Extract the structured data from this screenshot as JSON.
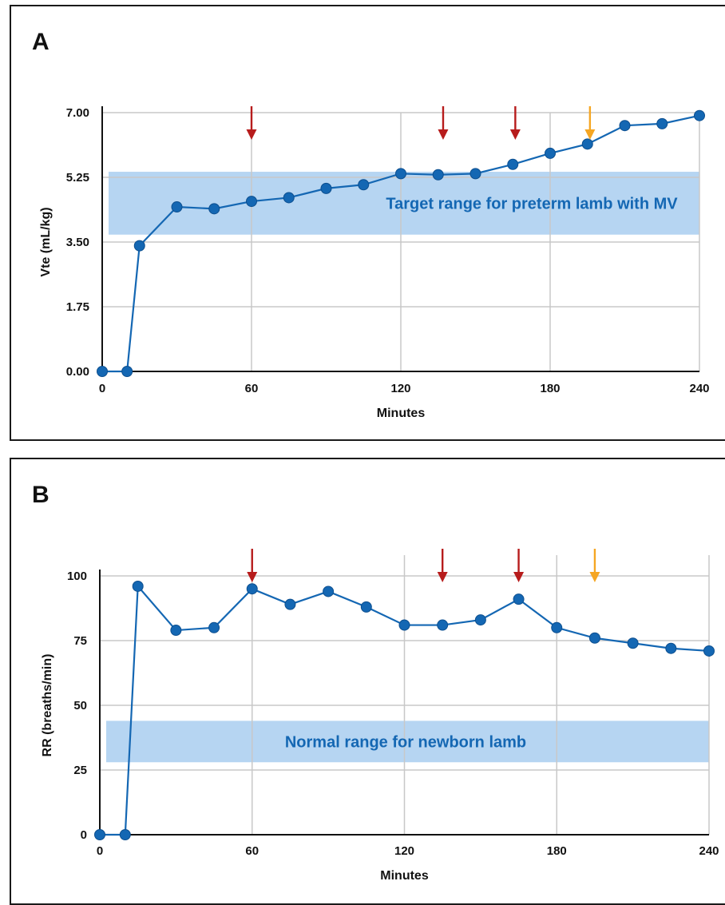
{
  "panels": [
    {
      "letter": "A"
    },
    {
      "letter": "B"
    }
  ],
  "colors": {
    "series": "#1467b3",
    "band": "#b6d5f2",
    "grid": "#c8c8c8",
    "arrow_red": "#b71c1c",
    "arrow_orange": "#f5a623"
  },
  "chart_data": [
    {
      "type": "line",
      "panel": "A",
      "title": "",
      "xlabel": "Minutes",
      "ylabel": "Vte (mL/kg)",
      "xlim": [
        0,
        240
      ],
      "ylim": [
        0,
        7.0
      ],
      "xticks": [
        0,
        60,
        120,
        180,
        240
      ],
      "yticks": [
        0.0,
        1.75,
        3.5,
        5.25,
        7.0
      ],
      "ytick_labels": [
        "0.00",
        "1.75",
        "3.50",
        "5.25",
        "7.00"
      ],
      "grid": true,
      "band": {
        "from": 3.7,
        "to": 5.4,
        "label": "Target range for preterm lamb with MV"
      },
      "series": [
        {
          "x": [
            0,
            10,
            15,
            30,
            45,
            60,
            75,
            90,
            105,
            120,
            135,
            150,
            165,
            180,
            195,
            210,
            225,
            240
          ],
          "y": [
            0.0,
            0.0,
            3.4,
            4.45,
            4.4,
            4.6,
            4.7,
            4.95,
            5.05,
            5.35,
            5.32,
            5.35,
            5.6,
            5.9,
            6.15,
            6.65,
            6.7,
            6.92
          ]
        }
      ],
      "arrows": [
        {
          "x": 60,
          "color": "red"
        },
        {
          "x": 137,
          "color": "red"
        },
        {
          "x": 166,
          "color": "red"
        },
        {
          "x": 196,
          "color": "orange"
        }
      ]
    },
    {
      "type": "line",
      "panel": "B",
      "title": "",
      "xlabel": "Minutes",
      "ylabel": "RR (breaths/min)",
      "xlim": [
        0,
        240
      ],
      "ylim": [
        0,
        100
      ],
      "xticks": [
        0,
        60,
        120,
        180,
        240
      ],
      "yticks": [
        0,
        25,
        50,
        75,
        100
      ],
      "ytick_labels": [
        "0",
        "25",
        "50",
        "75",
        "100"
      ],
      "grid": true,
      "band": {
        "from": 28,
        "to": 44,
        "label": "Normal range for newborn lamb"
      },
      "series": [
        {
          "x": [
            0,
            10,
            15,
            30,
            45,
            60,
            75,
            90,
            105,
            120,
            135,
            150,
            165,
            180,
            195,
            210,
            225,
            240
          ],
          "y": [
            0,
            0,
            96,
            79,
            80,
            95,
            89,
            94,
            88,
            81,
            81,
            83,
            91,
            80,
            76,
            74,
            72,
            71
          ]
        }
      ],
      "arrows": [
        {
          "x": 60,
          "color": "red"
        },
        {
          "x": 135,
          "color": "red"
        },
        {
          "x": 165,
          "color": "red"
        },
        {
          "x": 195,
          "color": "orange"
        }
      ]
    }
  ]
}
